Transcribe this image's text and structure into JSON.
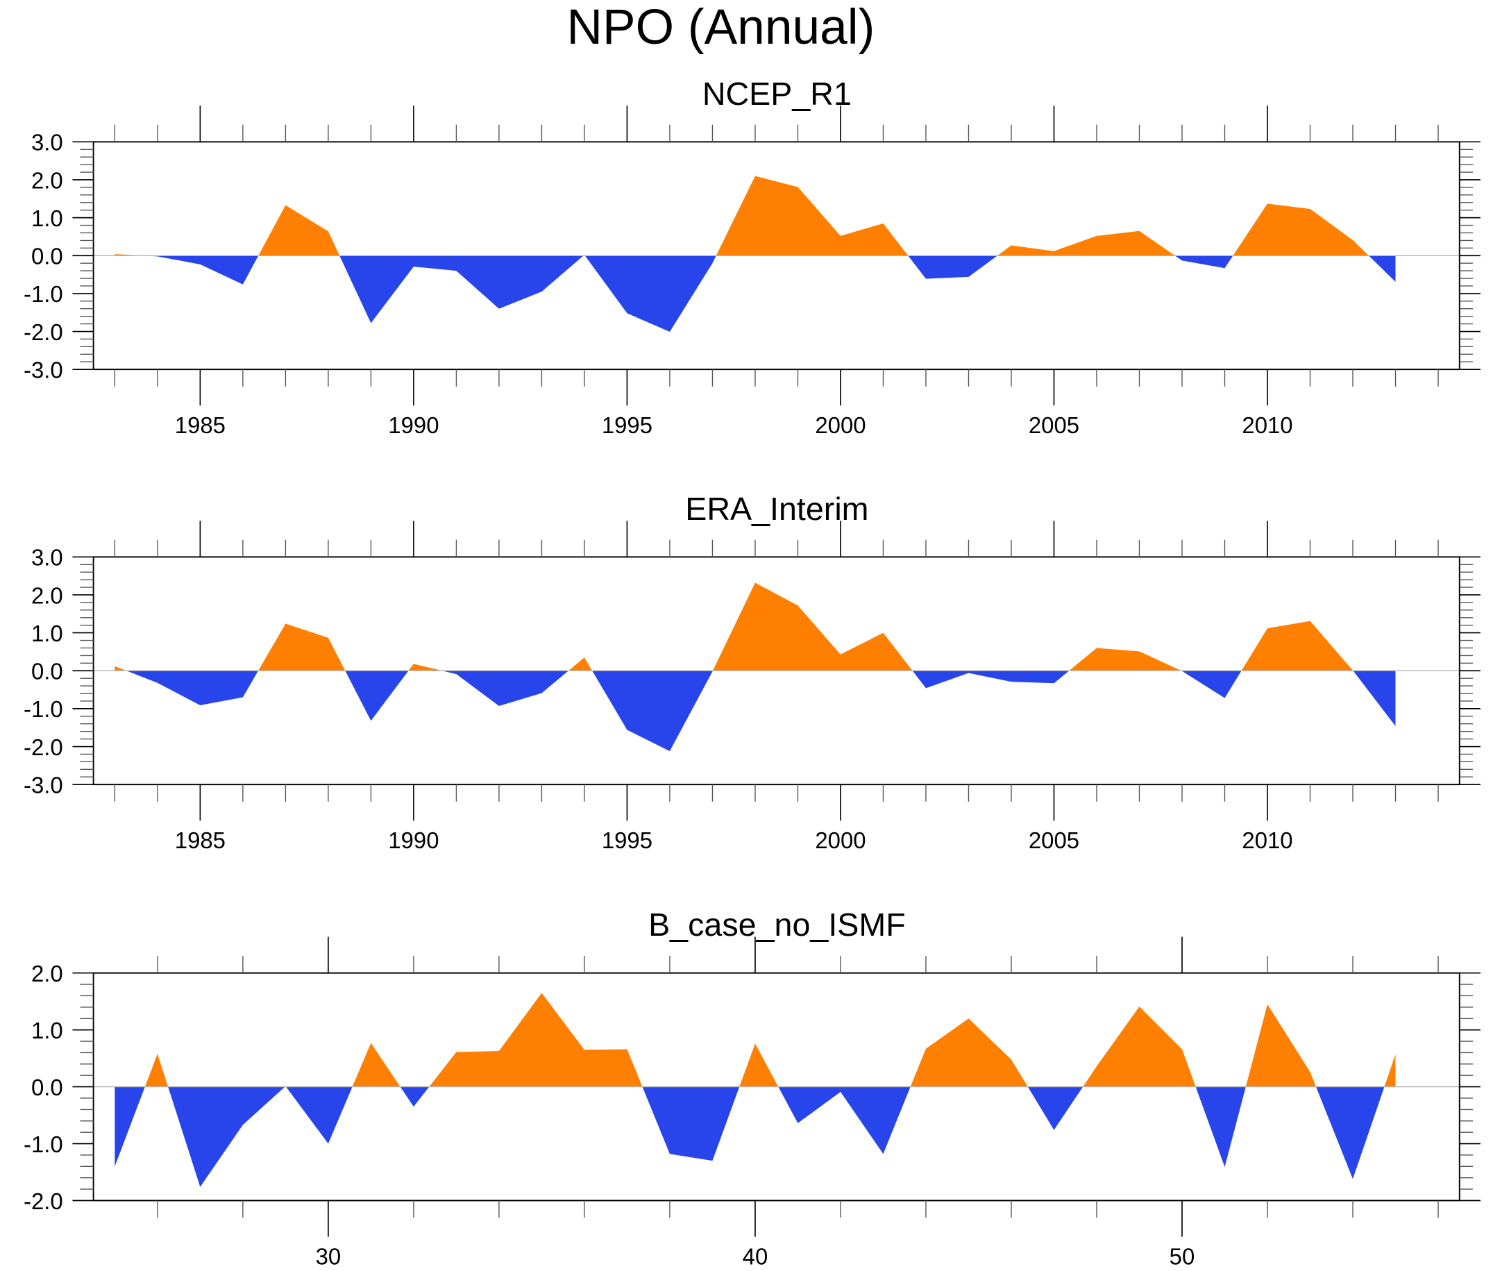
{
  "title": "NPO (Annual)",
  "colors": {
    "positive": "#FF8000",
    "negative": "#2845EB",
    "zero_line": "#B4B4B4",
    "axis": "#000000"
  },
  "chart_data": [
    {
      "type": "area",
      "title": "NCEP_R1",
      "xlabel": "",
      "ylabel": "",
      "fill_mode": "above zero orange, below zero blue",
      "xlim": [
        1982.5,
        2014.5
      ],
      "ylim": [
        -3.0,
        3.0
      ],
      "x_major_ticks": [
        1985,
        1990,
        1995,
        2000,
        2005,
        2010
      ],
      "x_major_tick_labels": [
        "1985",
        "1990",
        "1995",
        "2000",
        "2005",
        "2010"
      ],
      "x_minor_step": 1,
      "x_minor_range": [
        1983,
        2014
      ],
      "y_major_ticks": [
        3.0,
        2.0,
        1.0,
        0.0,
        -1.0,
        -2.0,
        -3.0
      ],
      "y_tick_labels": [
        "3.0",
        "2.0",
        "1.0",
        "0.0",
        "-1.0",
        "-2.0",
        "-3.0"
      ],
      "y_minor_step": 0.2,
      "grid": false,
      "legend": "none",
      "x": [
        1983,
        1984,
        1985,
        1986,
        1987,
        1988,
        1989,
        1990,
        1991,
        1992,
        1993,
        1994,
        1995,
        1996,
        1997,
        1998,
        1999,
        2000,
        2001,
        2002,
        2003,
        2004,
        2005,
        2006,
        2007,
        2008,
        2009,
        2010,
        2011,
        2012,
        2013
      ],
      "values": [
        0.04,
        -0.02,
        -0.23,
        -0.76,
        1.33,
        0.64,
        -1.78,
        -0.29,
        -0.4,
        -1.4,
        -0.95,
        0.02,
        -1.52,
        -2.01,
        -0.2,
        2.1,
        1.81,
        0.52,
        0.85,
        -0.61,
        -0.56,
        0.27,
        0.12,
        0.52,
        0.65,
        -0.13,
        -0.33,
        1.37,
        1.23,
        0.41,
        -0.69
      ]
    },
    {
      "type": "area",
      "title": "ERA_Interim",
      "xlabel": "",
      "ylabel": "",
      "fill_mode": "above zero orange, below zero blue",
      "xlim": [
        1982.5,
        2014.5
      ],
      "ylim": [
        -3.0,
        3.0
      ],
      "x_major_ticks": [
        1985,
        1990,
        1995,
        2000,
        2005,
        2010
      ],
      "x_major_tick_labels": [
        "1985",
        "1990",
        "1995",
        "2000",
        "2005",
        "2010"
      ],
      "x_minor_step": 1,
      "x_minor_range": [
        1983,
        2014
      ],
      "y_major_ticks": [
        3.0,
        2.0,
        1.0,
        0.0,
        -1.0,
        -2.0,
        -3.0
      ],
      "y_tick_labels": [
        "3.0",
        "2.0",
        "1.0",
        "0.0",
        "-1.0",
        "-2.0",
        "-3.0"
      ],
      "y_minor_step": 0.2,
      "grid": false,
      "legend": "none",
      "x": [
        1983,
        1984,
        1985,
        1986,
        1987,
        1988,
        1989,
        1990,
        1991,
        1992,
        1993,
        1994,
        1995,
        1996,
        1997,
        1998,
        1999,
        2000,
        2001,
        2002,
        2003,
        2004,
        2005,
        2006,
        2007,
        2008,
        2009,
        2010,
        2011,
        2012,
        2013
      ],
      "values": [
        0.12,
        -0.32,
        -0.91,
        -0.7,
        1.24,
        0.87,
        -1.32,
        0.18,
        -0.09,
        -0.93,
        -0.59,
        0.35,
        -1.56,
        -2.12,
        -0.02,
        2.32,
        1.72,
        0.43,
        1.0,
        -0.46,
        -0.06,
        -0.29,
        -0.33,
        0.6,
        0.51,
        -0.01,
        -0.72,
        1.12,
        1.31,
        0.01,
        -1.46
      ]
    },
    {
      "type": "area",
      "title": "B_case_no_ISMF",
      "xlabel": "",
      "ylabel": "",
      "fill_mode": "above zero orange, below zero blue",
      "xlim": [
        24.5,
        56.5
      ],
      "ylim": [
        -2.0,
        2.0
      ],
      "x_major_ticks": [
        30,
        40,
        50
      ],
      "x_major_tick_labels": [
        "30",
        "40",
        "50"
      ],
      "x_minor_step": 2,
      "x_minor_range": [
        26,
        56
      ],
      "y_major_ticks": [
        2.0,
        1.0,
        0.0,
        -1.0,
        -2.0
      ],
      "y_tick_labels": [
        "2.0",
        "1.0",
        "0.0",
        "-1.0",
        "-2.0"
      ],
      "y_minor_step": 0.2,
      "grid": false,
      "legend": "none",
      "x": [
        25,
        26,
        27,
        28,
        29,
        30,
        31,
        32,
        33,
        34,
        35,
        36,
        37,
        38,
        39,
        40,
        41,
        42,
        43,
        44,
        45,
        46,
        47,
        48,
        49,
        50,
        51,
        52,
        53,
        54,
        55
      ],
      "values": [
        -1.4,
        0.58,
        -1.76,
        -0.67,
        0.01,
        -1.0,
        0.77,
        -0.35,
        0.61,
        0.63,
        1.65,
        0.65,
        0.66,
        -1.18,
        -1.3,
        0.76,
        -0.64,
        -0.09,
        -1.18,
        0.67,
        1.2,
        0.48,
        -0.76,
        0.36,
        1.41,
        0.66,
        -1.41,
        1.45,
        0.26,
        -1.62,
        0.57
      ]
    }
  ]
}
